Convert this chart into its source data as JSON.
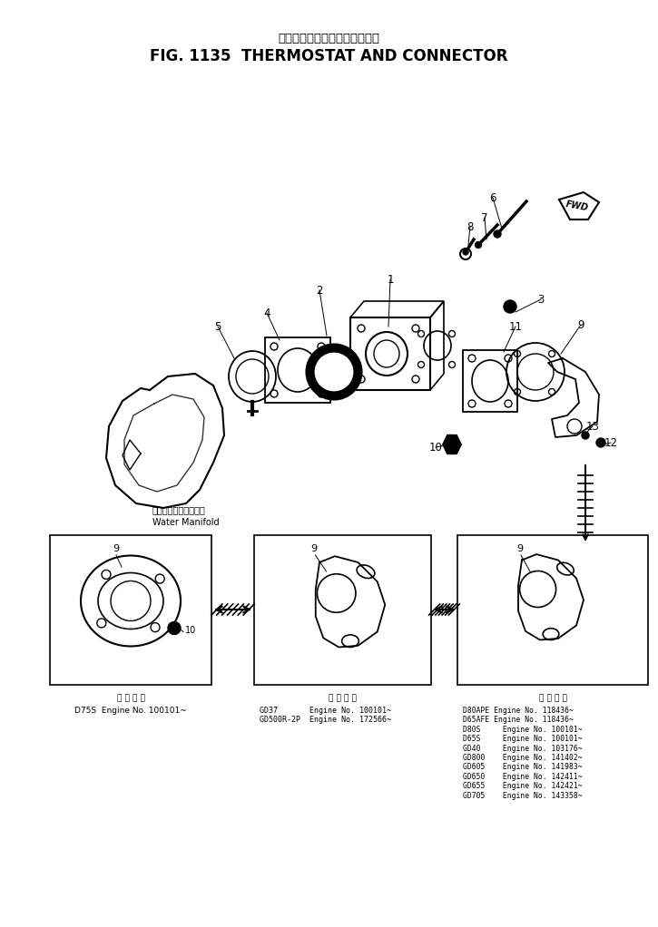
{
  "title_japanese": "サーモスタットおよびコネクタ",
  "title_english": "FIG. 1135  THERMOSTAT AND CONNECTOR",
  "bg_color": "#ffffff",
  "label_box1_title": "適 用 号 機",
  "label_box1_content": "D75S  Engine No. 100101~",
  "label_box2_title": "適 用 号 機",
  "label_box2_content": "GD37       Engine No. 100101~\nGD500R-2P  Engine No. 172566~",
  "label_box3_title": "適 用 号 機",
  "label_box3_content": "D80APE Engine No. 118436~\nD65AFE Engine No. 118436~\nD80S     Engine No. 100101~\nD65S     Engine No. 100101~\nGD40     Engine No. 103176~\nGD800    Engine No. 141402~\nGD605    Engine No. 141983~\nGD650    Engine No. 142411~\nGD655    Engine No. 142421~\nGD705    Engine No. 143358~",
  "water_manifold_jp": "ウォータマニホールど",
  "water_manifold_en": "Water Manifold",
  "fig_width": 7.25,
  "fig_height": 10.22,
  "dpi": 100
}
